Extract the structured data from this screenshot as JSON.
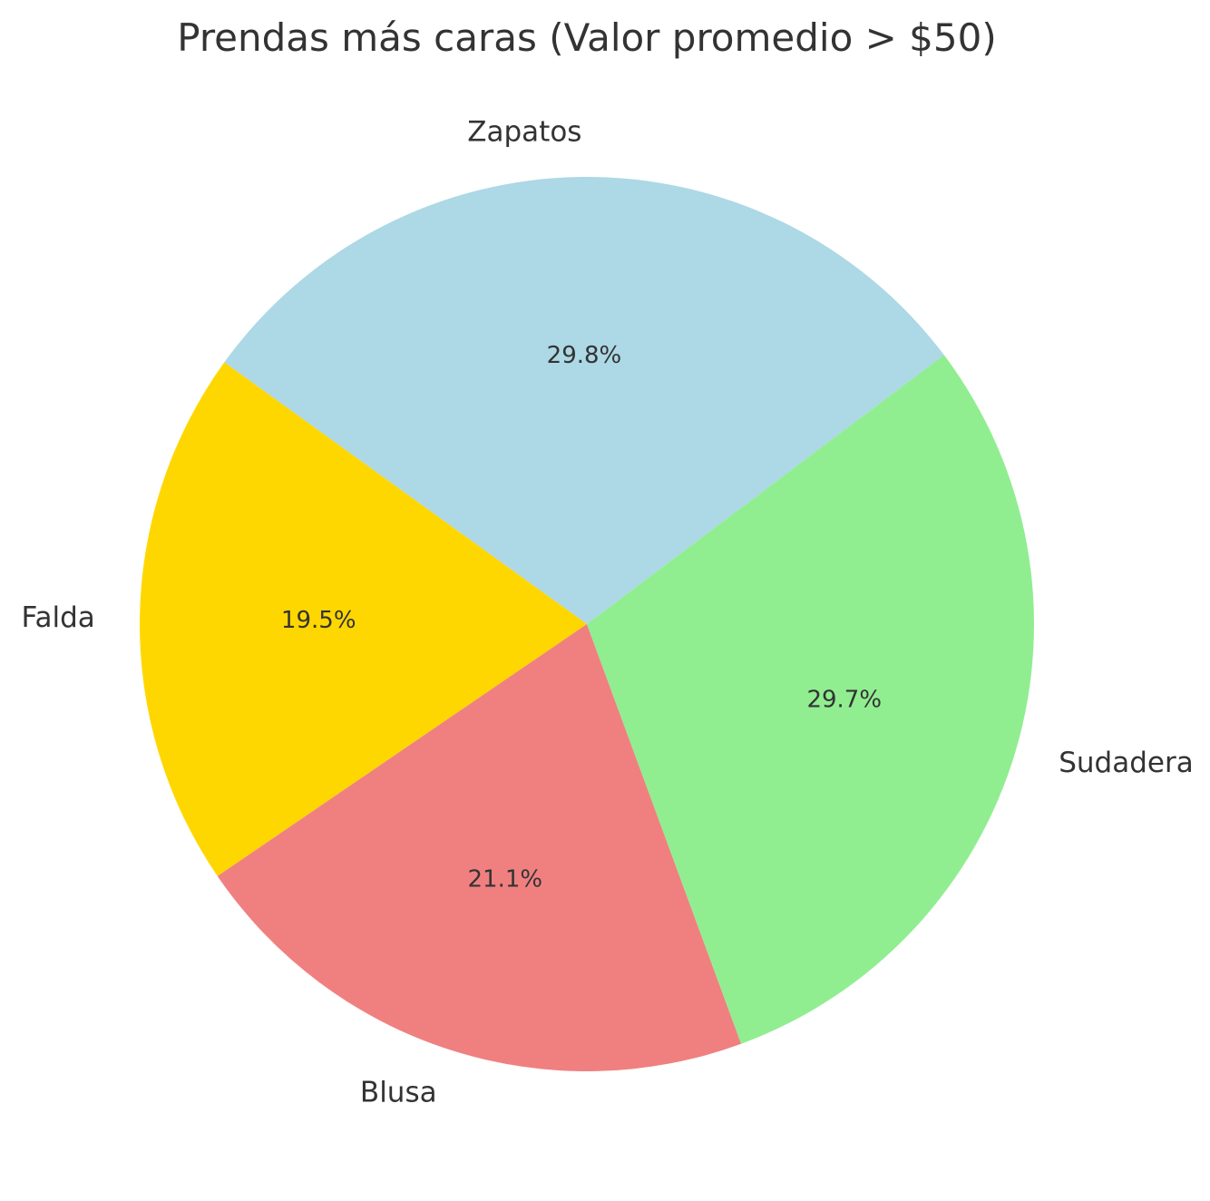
{
  "chart_data": {
    "type": "pie",
    "title": "Prendas más caras (Valor promedio > $50)",
    "labels": [
      "Zapatos",
      "Falda",
      "Blusa",
      "Sudadera"
    ],
    "values": [
      29.8,
      19.5,
      21.1,
      29.7
    ],
    "percent_labels": [
      "29.8%",
      "19.5%",
      "21.1%",
      "29.7%"
    ],
    "colors": [
      "#add8e6",
      "#ffd700",
      "#f08080",
      "#90ee90"
    ],
    "direction": "counterclockwise",
    "legend": "none"
  }
}
